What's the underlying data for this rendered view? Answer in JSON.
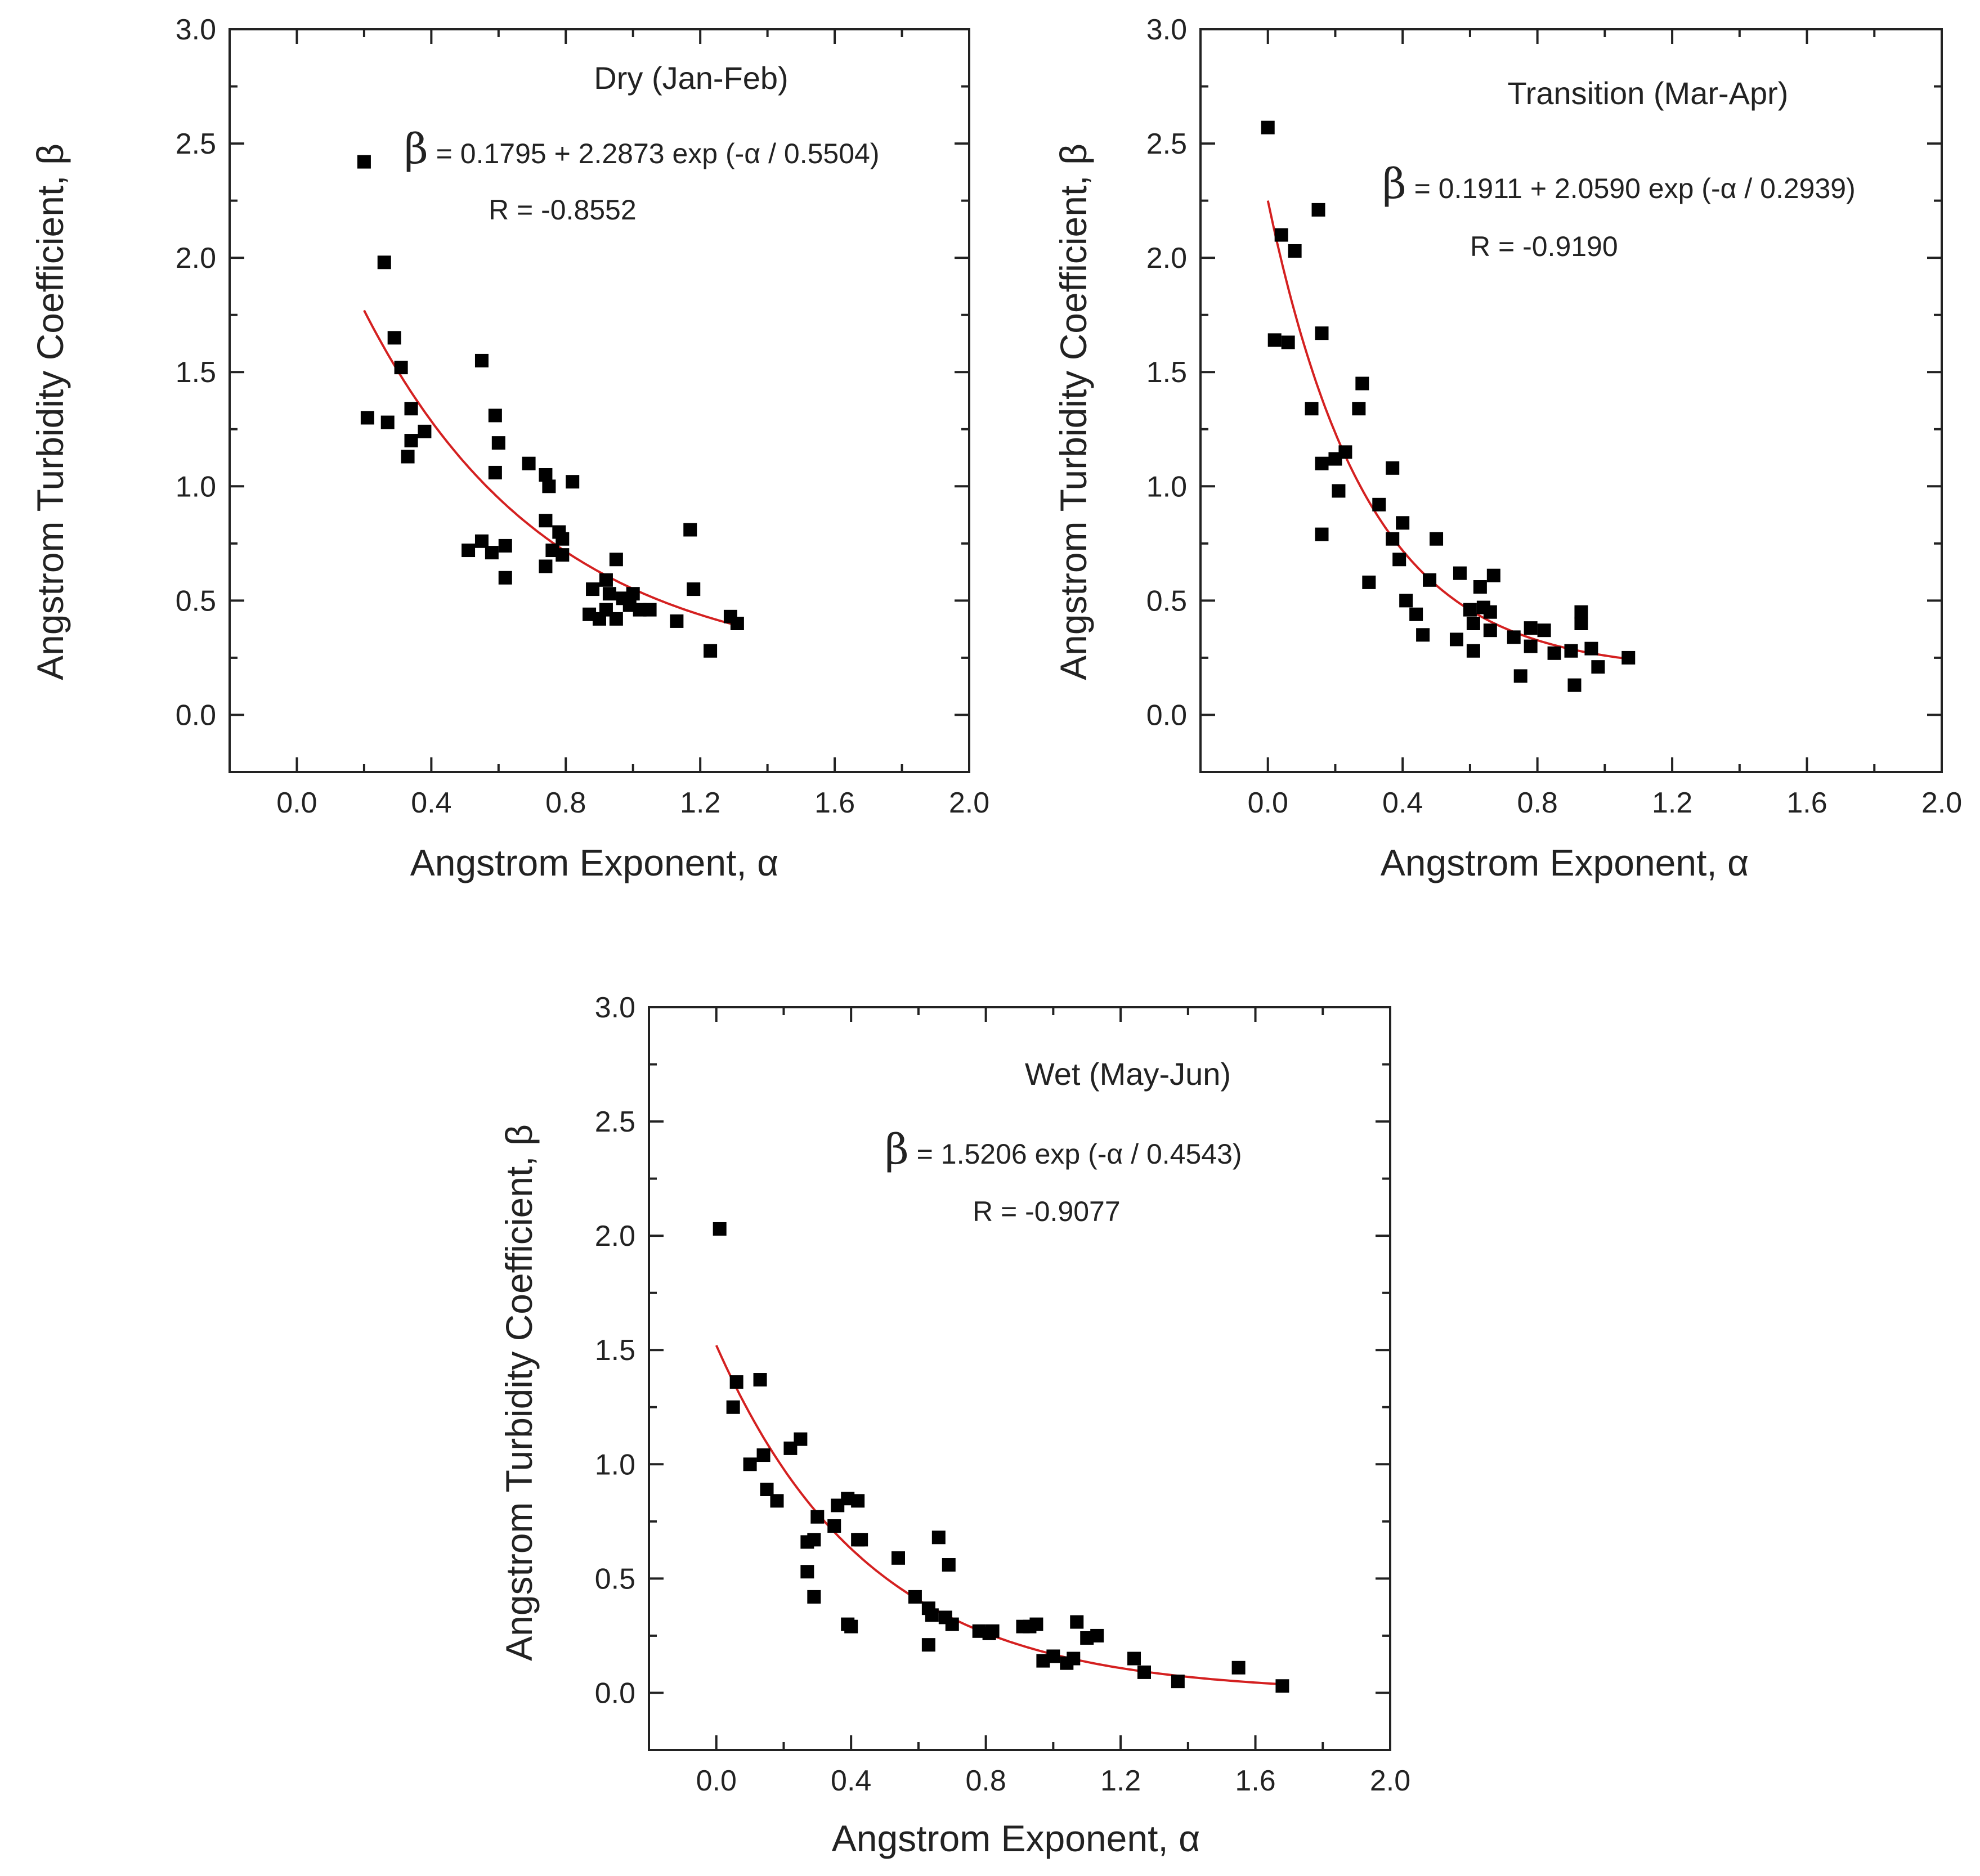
{
  "figure": {
    "background": "#ffffff",
    "axis_color": "#222222",
    "marker_color": "#000000",
    "fit_color": "#d42020"
  },
  "chart_data": [
    {
      "type": "scatter",
      "id": "dry",
      "title": "Dry (Jan-Feb)",
      "equation_symbol": "β",
      "equation_rest": " = 0.1795 + 2.2873 exp (-α / 0.5504)",
      "r_text": "R = -0.8552",
      "xlabel": "Angstrom Exponent, α",
      "ylabel": "Angstrom Turbidity Coefficient, β",
      "xlim": [
        -0.2,
        2.0
      ],
      "ylim": [
        -0.25,
        3.0
      ],
      "xticks": [
        "0.0",
        "0.4",
        "0.8",
        "1.2",
        "1.6",
        "2.0"
      ],
      "yticks": [
        "0.0",
        "0.5",
        "1.0",
        "1.5",
        "2.0",
        "2.5",
        "3.0"
      ],
      "fit": {
        "a": 0.1795,
        "b": 2.2873,
        "t": 0.5504,
        "xmin": 0.2,
        "xmax": 1.3
      },
      "points": [
        [
          0.2,
          2.42
        ],
        [
          0.26,
          1.98
        ],
        [
          0.29,
          1.65
        ],
        [
          0.31,
          1.52
        ],
        [
          0.34,
          1.34
        ],
        [
          0.21,
          1.3
        ],
        [
          0.27,
          1.28
        ],
        [
          0.38,
          1.24
        ],
        [
          0.34,
          1.2
        ],
        [
          0.33,
          1.13
        ],
        [
          0.55,
          1.55
        ],
        [
          0.59,
          1.31
        ],
        [
          0.6,
          1.19
        ],
        [
          0.59,
          1.06
        ],
        [
          0.69,
          1.1
        ],
        [
          0.74,
          1.05
        ],
        [
          0.75,
          1.0
        ],
        [
          0.82,
          1.02
        ],
        [
          0.74,
          0.85
        ],
        [
          0.78,
          0.8
        ],
        [
          0.79,
          0.77
        ],
        [
          0.76,
          0.72
        ],
        [
          0.79,
          0.7
        ],
        [
          0.74,
          0.65
        ],
        [
          0.51,
          0.72
        ],
        [
          0.55,
          0.76
        ],
        [
          0.58,
          0.71
        ],
        [
          0.62,
          0.74
        ],
        [
          0.62,
          0.6
        ],
        [
          0.95,
          0.68
        ],
        [
          0.92,
          0.59
        ],
        [
          0.88,
          0.55
        ],
        [
          0.93,
          0.53
        ],
        [
          0.97,
          0.51
        ],
        [
          1.0,
          0.53
        ],
        [
          0.99,
          0.48
        ],
        [
          0.92,
          0.46
        ],
        [
          0.87,
          0.44
        ],
        [
          0.9,
          0.42
        ],
        [
          0.95,
          0.42
        ],
        [
          1.02,
          0.46
        ],
        [
          1.05,
          0.46
        ],
        [
          1.13,
          0.41
        ],
        [
          1.17,
          0.81
        ],
        [
          1.18,
          0.55
        ],
        [
          1.23,
          0.28
        ],
        [
          1.29,
          0.43
        ],
        [
          1.31,
          0.4
        ]
      ]
    },
    {
      "type": "scatter",
      "id": "transition",
      "title": "Transition (Mar-Apr)",
      "equation_symbol": "β",
      "equation_rest": " = 0.1911 + 2.0590 exp (-α / 0.2939)",
      "r_text": "R = -0.9190",
      "xlabel": "Angstrom Exponent, α",
      "ylabel": "Angstrom Turbidity Coefficient, β",
      "xlim": [
        -0.2,
        2.0
      ],
      "ylim": [
        -0.25,
        3.0
      ],
      "xticks": [
        "0.0",
        "0.4",
        "0.8",
        "1.2",
        "1.6",
        "2.0"
      ],
      "yticks": [
        "0.0",
        "0.5",
        "1.0",
        "1.5",
        "2.0",
        "2.5",
        "3.0"
      ],
      "fit": {
        "a": 0.1911,
        "b": 2.059,
        "t": 0.2939,
        "xmin": 0.0,
        "xmax": 1.07
      },
      "points": [
        [
          0.0,
          2.57
        ],
        [
          0.15,
          2.21
        ],
        [
          0.04,
          2.1
        ],
        [
          0.08,
          2.03
        ],
        [
          0.02,
          1.64
        ],
        [
          0.06,
          1.63
        ],
        [
          0.16,
          1.67
        ],
        [
          0.28,
          1.45
        ],
        [
          0.13,
          1.34
        ],
        [
          0.27,
          1.34
        ],
        [
          0.23,
          1.15
        ],
        [
          0.2,
          1.12
        ],
        [
          0.16,
          1.1
        ],
        [
          0.37,
          1.08
        ],
        [
          0.21,
          0.98
        ],
        [
          0.33,
          0.92
        ],
        [
          0.4,
          0.84
        ],
        [
          0.16,
          0.79
        ],
        [
          0.37,
          0.77
        ],
        [
          0.39,
          0.68
        ],
        [
          0.5,
          0.77
        ],
        [
          0.3,
          0.58
        ],
        [
          0.48,
          0.59
        ],
        [
          0.57,
          0.62
        ],
        [
          0.63,
          0.56
        ],
        [
          0.67,
          0.61
        ],
        [
          0.41,
          0.5
        ],
        [
          0.44,
          0.44
        ],
        [
          0.6,
          0.46
        ],
        [
          0.64,
          0.47
        ],
        [
          0.66,
          0.45
        ],
        [
          0.61,
          0.4
        ],
        [
          0.46,
          0.35
        ],
        [
          0.56,
          0.33
        ],
        [
          0.66,
          0.37
        ],
        [
          0.73,
          0.34
        ],
        [
          0.78,
          0.38
        ],
        [
          0.82,
          0.37
        ],
        [
          0.93,
          0.45
        ],
        [
          0.93,
          0.4
        ],
        [
          0.78,
          0.3
        ],
        [
          0.85,
          0.27
        ],
        [
          0.9,
          0.28
        ],
        [
          0.96,
          0.29
        ],
        [
          1.07,
          0.25
        ],
        [
          0.98,
          0.21
        ],
        [
          0.75,
          0.17
        ],
        [
          0.91,
          0.13
        ],
        [
          0.61,
          0.28
        ]
      ]
    },
    {
      "type": "scatter",
      "id": "wet",
      "title": "Wet (May-Jun)",
      "equation_symbol": "β",
      "equation_rest": " = 1.5206 exp (-α / 0.4543)",
      "r_text": "R = -0.9077",
      "xlabel": "Angstrom Exponent, α",
      "ylabel": "Angstrom Turbidity Coefficient, β",
      "xlim": [
        -0.2,
        2.0
      ],
      "ylim": [
        -0.25,
        3.0
      ],
      "xticks": [
        "0.0",
        "0.4",
        "0.8",
        "1.2",
        "1.6",
        "2.0"
      ],
      "yticks": [
        "0.0",
        "0.5",
        "1.0",
        "1.5",
        "2.0",
        "2.5",
        "3.0"
      ],
      "fit": {
        "a": 0.0,
        "b": 1.5206,
        "t": 0.4543,
        "xmin": 0.0,
        "xmax": 1.68
      },
      "points": [
        [
          0.01,
          2.03
        ],
        [
          0.06,
          1.36
        ],
        [
          0.13,
          1.37
        ],
        [
          0.05,
          1.25
        ],
        [
          0.25,
          1.11
        ],
        [
          0.22,
          1.07
        ],
        [
          0.14,
          1.04
        ],
        [
          0.1,
          1.0
        ],
        [
          0.15,
          0.89
        ],
        [
          0.18,
          0.84
        ],
        [
          0.36,
          0.82
        ],
        [
          0.39,
          0.85
        ],
        [
          0.42,
          0.84
        ],
        [
          0.3,
          0.77
        ],
        [
          0.35,
          0.73
        ],
        [
          0.27,
          0.66
        ],
        [
          0.29,
          0.67
        ],
        [
          0.42,
          0.67
        ],
        [
          0.43,
          0.67
        ],
        [
          0.54,
          0.59
        ],
        [
          0.66,
          0.68
        ],
        [
          0.69,
          0.56
        ],
        [
          0.27,
          0.53
        ],
        [
          0.29,
          0.42
        ],
        [
          0.59,
          0.42
        ],
        [
          0.63,
          0.37
        ],
        [
          0.64,
          0.34
        ],
        [
          0.68,
          0.33
        ],
        [
          0.7,
          0.3
        ],
        [
          0.39,
          0.3
        ],
        [
          0.4,
          0.29
        ],
        [
          0.78,
          0.27
        ],
        [
          0.81,
          0.26
        ],
        [
          0.82,
          0.27
        ],
        [
          0.91,
          0.29
        ],
        [
          0.93,
          0.29
        ],
        [
          0.95,
          0.3
        ],
        [
          0.63,
          0.21
        ],
        [
          0.97,
          0.14
        ],
        [
          1.0,
          0.16
        ],
        [
          1.04,
          0.13
        ],
        [
          1.06,
          0.15
        ],
        [
          1.07,
          0.31
        ],
        [
          1.1,
          0.24
        ],
        [
          1.13,
          0.25
        ],
        [
          1.24,
          0.15
        ],
        [
          1.27,
          0.09
        ],
        [
          1.37,
          0.05
        ],
        [
          1.55,
          0.11
        ],
        [
          1.68,
          0.03
        ]
      ]
    }
  ]
}
